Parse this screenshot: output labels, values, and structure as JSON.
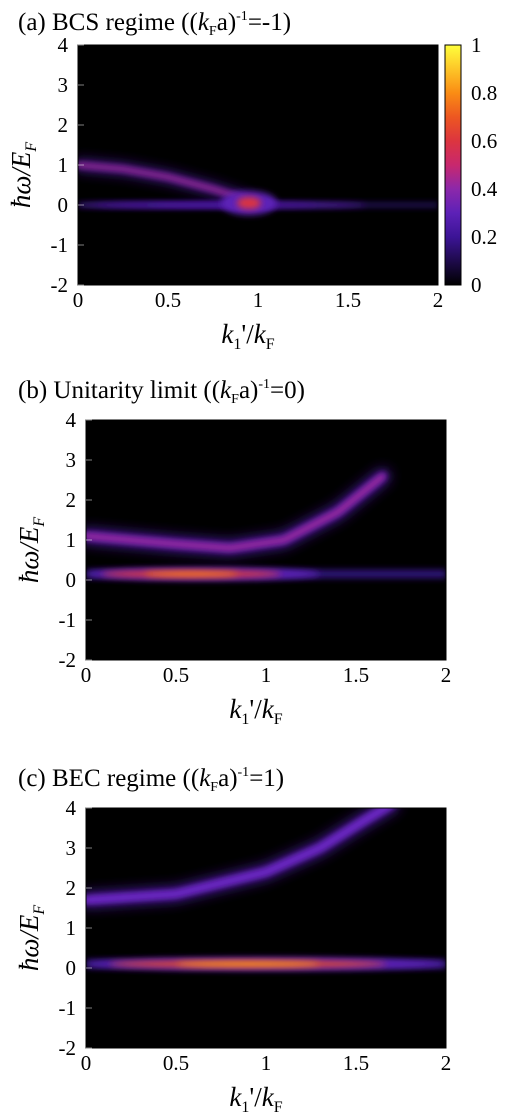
{
  "figure": {
    "description_free": true
  },
  "colors": {
    "background": "#000000",
    "colormap": [
      "#000000",
      "#3b0f70",
      "#8c2981",
      "#de4968",
      "#fe9f6d",
      "#fcfdbf"
    ],
    "colorbar_top": "#ffff40",
    "colorbar_mid": "#e04a2e",
    "colorbar_low": "#6a2fd0"
  },
  "chart_data": [
    {
      "type": "heatmap",
      "panel": "a",
      "title": "(a) BCS regime ((kFa)-1=-1)",
      "title_parts": {
        "prefix": "(a) BCS regime ((",
        "k": "k",
        "sub": "F",
        "mid": "a)",
        "sup": "-1",
        "suffix": "=-1)"
      },
      "xlabel": "k1'/kF",
      "ylabel": "ħω/EF",
      "xlim": [
        0,
        2
      ],
      "ylim": [
        -2,
        4
      ],
      "xticks": [
        "0",
        "0.5",
        "1",
        "1.5",
        "2"
      ],
      "yticks": [
        "4",
        "3",
        "2",
        "1",
        "0",
        "-1",
        "-2"
      ],
      "colorbar": {
        "range": [
          0,
          1
        ],
        "ticks": [
          "1",
          "0.8",
          "0.6",
          "0.4",
          "0.2",
          "0"
        ]
      },
      "features": [
        {
          "kind": "curve",
          "name": "upper branch",
          "points": [
            [
              0,
              1.0
            ],
            [
              0.25,
              0.9
            ],
            [
              0.5,
              0.7
            ],
            [
              0.75,
              0.4
            ],
            [
              0.92,
              0.15
            ]
          ],
          "intensity": 0.55,
          "width": 0.08
        },
        {
          "kind": "band",
          "name": "low-energy band",
          "y": 0.0,
          "x": [
            0.0,
            1.6
          ],
          "intensity": 0.25,
          "width": 0.05
        },
        {
          "kind": "spot",
          "name": "bright spot",
          "x": 0.95,
          "y": 0.05,
          "intensity": 0.6
        }
      ]
    },
    {
      "type": "heatmap",
      "panel": "b",
      "title": "(b) Unitarity limit ((kFa)-1=0)",
      "title_parts": {
        "prefix": "(b)  Unitarity limit ((",
        "k": "k",
        "sub": "F",
        "mid": "a)",
        "sup": "-1",
        "suffix": "=0)"
      },
      "xlabel": "k1'/kF",
      "ylabel": "ħω/EF",
      "xlim": [
        0,
        2
      ],
      "ylim": [
        -2,
        4
      ],
      "xticks": [
        "0",
        "0.5",
        "1",
        "1.5",
        "2"
      ],
      "yticks": [
        "4",
        "3",
        "2",
        "1",
        "0",
        "-1",
        "-2"
      ],
      "features": [
        {
          "kind": "curve",
          "name": "upper branch",
          "points": [
            [
              0,
              1.1
            ],
            [
              0.25,
              1.0
            ],
            [
              0.5,
              0.9
            ],
            [
              0.8,
              0.8
            ],
            [
              1.1,
              1.0
            ],
            [
              1.4,
              1.7
            ],
            [
              1.65,
              2.6
            ]
          ],
          "intensity": 0.5,
          "width": 0.12
        },
        {
          "kind": "band",
          "name": "low-energy band",
          "y": 0.15,
          "x": [
            0.0,
            1.3
          ],
          "intensity": 0.8,
          "width": 0.12
        }
      ]
    },
    {
      "type": "heatmap",
      "panel": "c",
      "title": "(c) BEC regime ((kFa)-1=1)",
      "title_parts": {
        "prefix": "(c)  BEC regime ((",
        "k": "k",
        "sub": "F",
        "mid": "a)",
        "sup": "-1",
        "suffix": "=1)"
      },
      "xlabel": "k1'/kF",
      "ylabel": "ħω/EF",
      "xlim": [
        0,
        2
      ],
      "ylim": [
        -2,
        4
      ],
      "xticks": [
        "0",
        "0.5",
        "1",
        "1.5",
        "2"
      ],
      "yticks": [
        "4",
        "3",
        "2",
        "1",
        "0",
        "-1",
        "-2"
      ],
      "features": [
        {
          "kind": "curve",
          "name": "upper branch",
          "points": [
            [
              0,
              1.7
            ],
            [
              0.5,
              1.85
            ],
            [
              1.0,
              2.4
            ],
            [
              1.3,
              3.0
            ],
            [
              1.55,
              3.7
            ],
            [
              1.7,
              4.1
            ]
          ],
          "intensity": 0.35,
          "width": 0.12
        },
        {
          "kind": "band",
          "name": "low-energy band",
          "y": 0.1,
          "x": [
            0.0,
            2.0
          ],
          "intensity": 0.85,
          "width": 0.12
        }
      ]
    }
  ]
}
